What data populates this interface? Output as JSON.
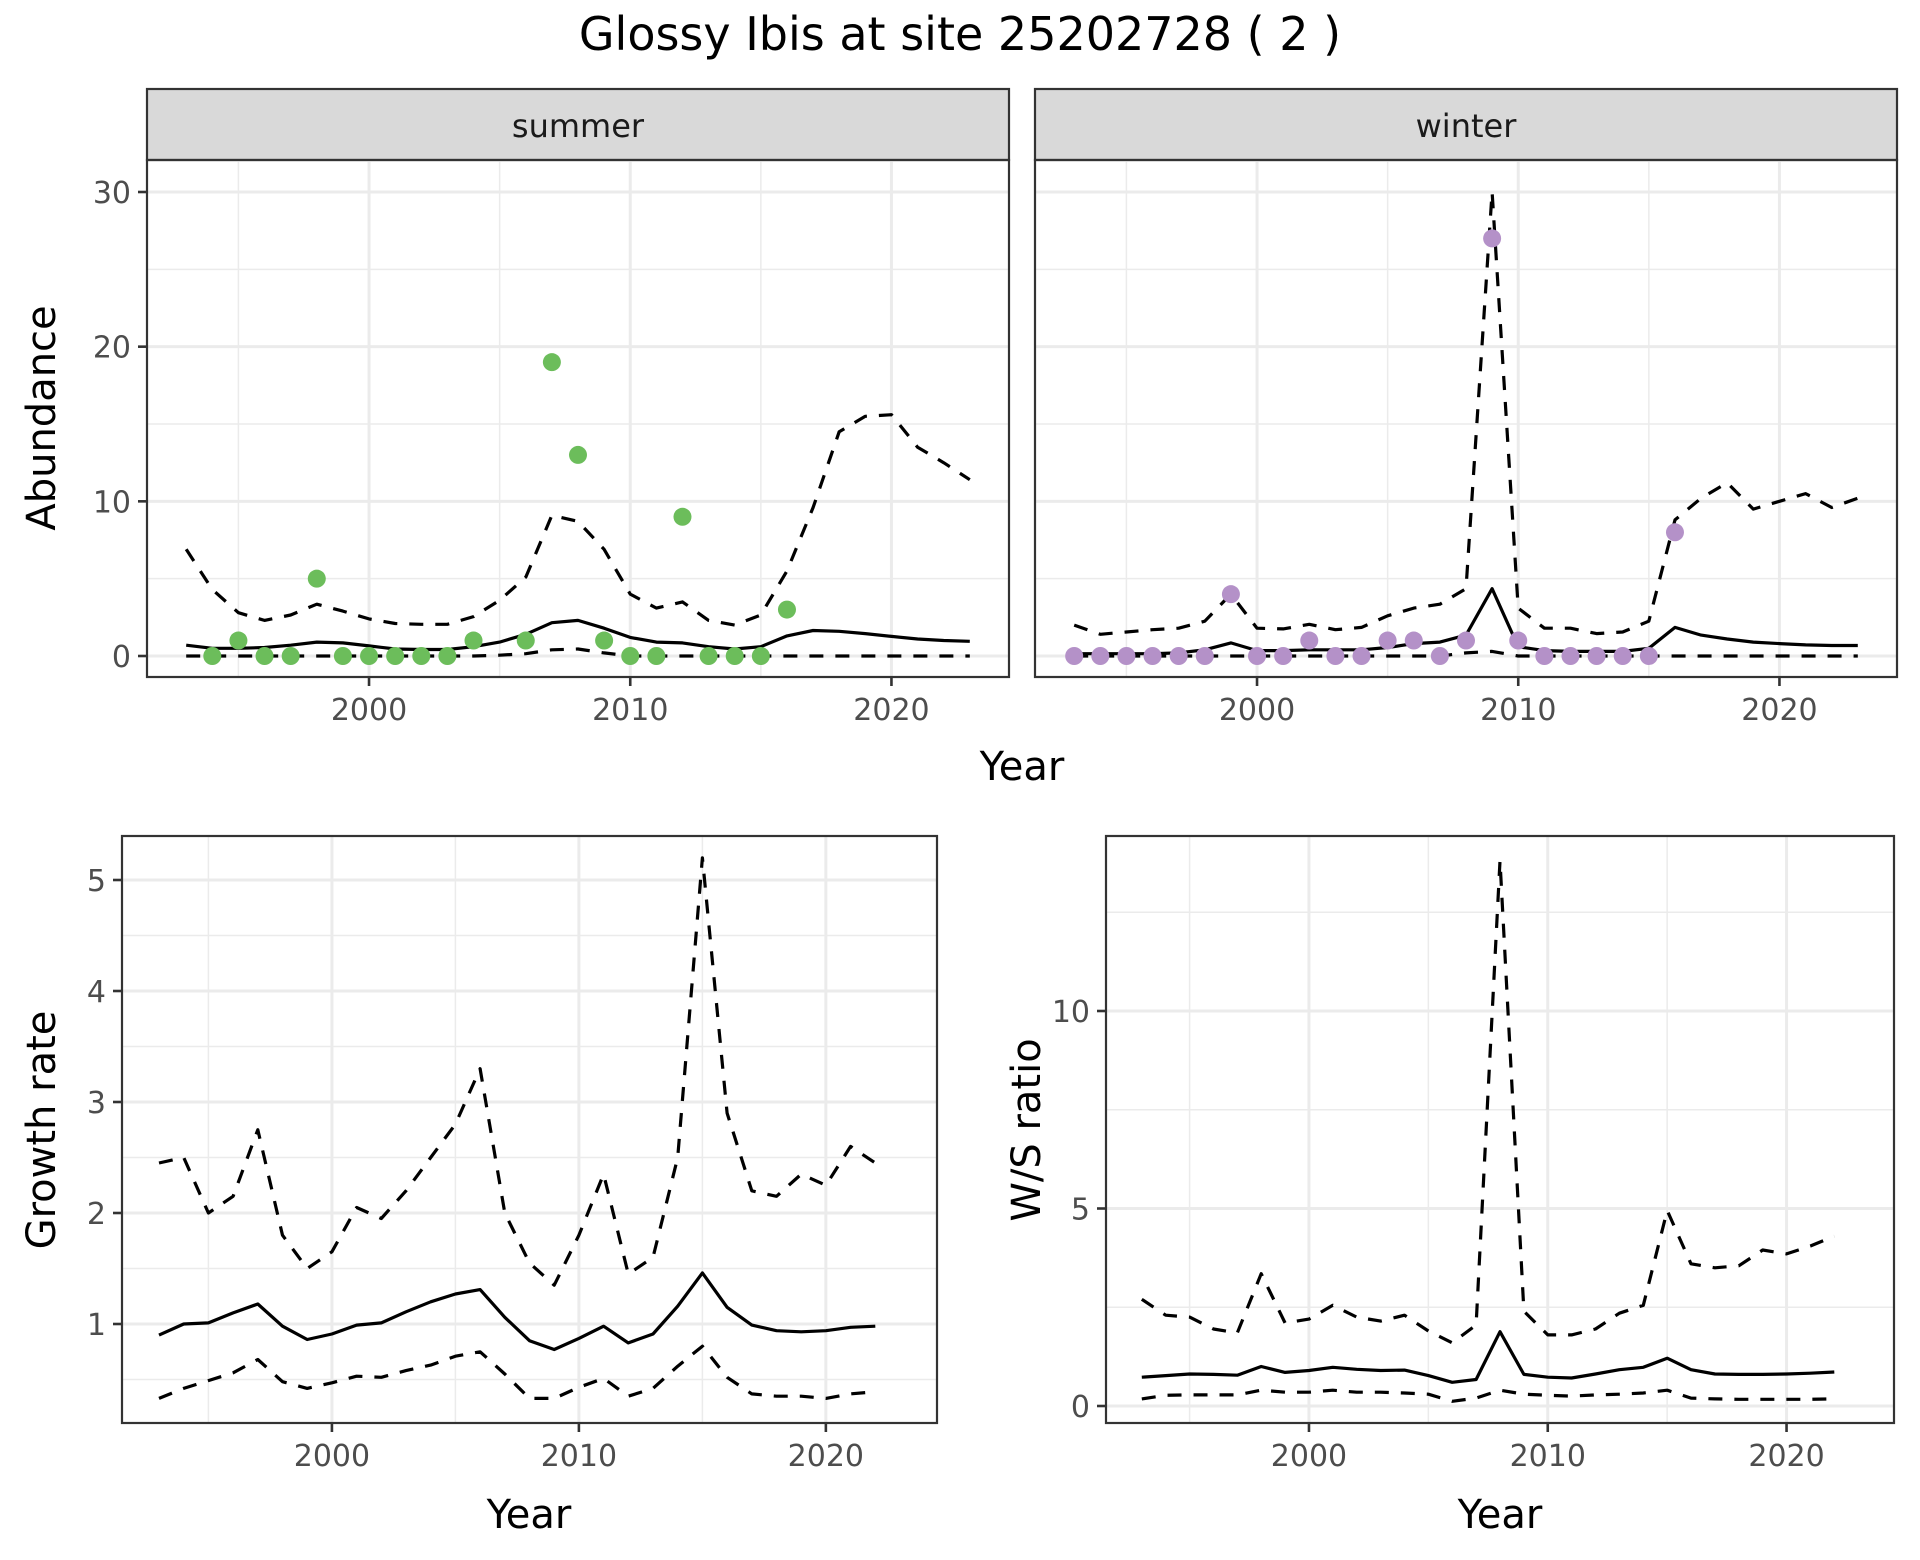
{
  "title": "Glossy Ibis at site 25202728 ( 2 )",
  "chart_data": [
    {
      "id": "abundance",
      "type": "line",
      "title": "Glossy Ibis at site 25202728 ( 2 )",
      "xlabel": "Year",
      "ylabel": "Abundance",
      "xlim": [
        1991.5,
        2024.5
      ],
      "ylim": [
        -1.5,
        32
      ],
      "x_ticks": [
        2000,
        2010,
        2020
      ],
      "y_ticks": [
        0,
        10,
        20,
        30
      ],
      "grid": true,
      "facets": [
        {
          "label": "summer",
          "point_color": "#6cbd5b",
          "points": {
            "x": [
              1994,
              1995,
              1996,
              1997,
              1998,
              1999,
              2000,
              2001,
              2002,
              2003,
              2004,
              2006,
              2007,
              2008,
              2009,
              2010,
              2011,
              2012,
              2013,
              2014,
              2015,
              2016
            ],
            "y": [
              0,
              1,
              0,
              0,
              5,
              0,
              0,
              0,
              0,
              0,
              1,
              1,
              19,
              13,
              1,
              0,
              0,
              9,
              0,
              0,
              0,
              3
            ]
          },
          "x": [
            1993,
            1994,
            1995,
            1996,
            1997,
            1998,
            1999,
            2000,
            2001,
            2002,
            2003,
            2004,
            2005,
            2006,
            2007,
            2008,
            2009,
            2010,
            2011,
            2012,
            2013,
            2014,
            2015,
            2016,
            2017,
            2018,
            2019,
            2020,
            2021,
            2022,
            2023
          ],
          "mean": [
            0.7,
            0.5,
            0.5,
            0.55,
            0.7,
            0.9,
            0.85,
            0.65,
            0.45,
            0.42,
            0.42,
            0.6,
            0.9,
            1.4,
            2.15,
            2.3,
            1.8,
            1.2,
            0.9,
            0.85,
            0.6,
            0.45,
            0.6,
            1.3,
            1.65,
            1.6,
            1.45,
            1.27,
            1.1,
            1.0,
            0.95
          ],
          "upper": [
            6.9,
            4.3,
            2.8,
            2.3,
            2.65,
            3.35,
            2.9,
            2.4,
            2.1,
            2.05,
            2.05,
            2.55,
            3.6,
            5.1,
            9.1,
            8.7,
            6.9,
            4.0,
            3.1,
            3.5,
            2.3,
            2.0,
            2.65,
            5.5,
            9.6,
            14.5,
            15.5,
            15.6,
            13.5,
            12.5,
            11.4
          ],
          "lower": [
            0,
            0,
            0,
            0,
            0,
            0,
            0,
            0,
            0,
            0,
            0,
            0,
            0.05,
            0.15,
            0.4,
            0.45,
            0.2,
            0,
            0,
            0,
            0,
            0,
            0,
            0,
            0,
            0,
            0,
            0,
            0,
            0,
            0
          ]
        },
        {
          "label": "winter",
          "point_color": "#b491c8",
          "points": {
            "x": [
              1993,
              1994,
              1995,
              1996,
              1997,
              1998,
              1999,
              2000,
              2001,
              2002,
              2003,
              2004,
              2005,
              2006,
              2007,
              2008,
              2009,
              2010,
              2011,
              2012,
              2013,
              2014,
              2015,
              2016
            ],
            "y": [
              0,
              0,
              0,
              0,
              0,
              0,
              4,
              0,
              0,
              1,
              0,
              0,
              1,
              1,
              0,
              1,
              27,
              1,
              0,
              0,
              0,
              0,
              0,
              8
            ]
          },
          "x": [
            1993,
            1994,
            1995,
            1996,
            1997,
            1998,
            1999,
            2000,
            2001,
            2002,
            2003,
            2004,
            2005,
            2006,
            2007,
            2008,
            2009,
            2010,
            2011,
            2012,
            2013,
            2014,
            2015,
            2016,
            2017,
            2018,
            2019,
            2020,
            2021,
            2022,
            2023
          ],
          "mean": [
            0.15,
            0.15,
            0.15,
            0.15,
            0.2,
            0.4,
            0.85,
            0.35,
            0.35,
            0.4,
            0.4,
            0.4,
            0.55,
            0.8,
            0.9,
            1.35,
            4.35,
            0.6,
            0.35,
            0.3,
            0.3,
            0.3,
            0.5,
            1.85,
            1.35,
            1.1,
            0.9,
            0.8,
            0.72,
            0.68,
            0.68
          ],
          "upper": [
            2.0,
            1.4,
            1.55,
            1.7,
            1.8,
            2.25,
            4.0,
            1.8,
            1.75,
            2.05,
            1.7,
            1.85,
            2.6,
            3.1,
            3.35,
            4.35,
            30.0,
            3.1,
            1.8,
            1.8,
            1.45,
            1.55,
            2.25,
            8.8,
            10.2,
            11.2,
            9.5,
            10.0,
            10.5,
            9.6,
            10.2
          ],
          "lower": [
            0,
            0,
            0,
            0,
            0,
            0,
            0,
            0,
            0,
            0,
            0,
            0,
            0,
            0,
            0,
            0.2,
            0.3,
            0,
            0,
            0,
            0,
            0,
            0,
            0,
            0,
            0,
            0,
            0,
            0,
            0,
            0
          ]
        }
      ]
    },
    {
      "id": "growth",
      "type": "line",
      "xlabel": "Year",
      "ylabel": "Growth rate",
      "xlim": [
        1991.5,
        2024.5
      ],
      "ylim": [
        0.1,
        5.4
      ],
      "x_ticks": [
        2000,
        2010,
        2020
      ],
      "y_ticks": [
        1,
        2,
        3,
        4,
        5
      ],
      "grid": true,
      "x": [
        1993,
        1994,
        1995,
        1996,
        1997,
        1998,
        1999,
        2000,
        2001,
        2002,
        2003,
        2004,
        2005,
        2006,
        2007,
        2008,
        2009,
        2010,
        2011,
        2012,
        2013,
        2014,
        2015,
        2016,
        2017,
        2018,
        2019,
        2020,
        2021,
        2022
      ],
      "series": [
        {
          "name": "mean",
          "values": [
            0.9,
            1.0,
            1.01,
            1.1,
            1.18,
            0.98,
            0.86,
            0.91,
            0.99,
            1.01,
            1.11,
            1.2,
            1.27,
            1.31,
            1.06,
            0.85,
            0.77,
            0.87,
            0.98,
            0.83,
            0.91,
            1.16,
            1.46,
            1.15,
            0.99,
            0.94,
            0.93,
            0.94,
            0.97,
            0.98
          ]
        },
        {
          "name": "upper",
          "values": [
            2.45,
            2.5,
            2.0,
            2.15,
            2.75,
            1.8,
            1.5,
            1.65,
            2.05,
            1.95,
            2.2,
            2.5,
            2.8,
            3.3,
            2.0,
            1.55,
            1.35,
            1.8,
            2.35,
            1.45,
            1.6,
            2.5,
            5.2,
            2.9,
            2.2,
            2.15,
            2.35,
            2.25,
            2.6,
            2.45
          ]
        },
        {
          "name": "lower",
          "values": [
            0.33,
            0.42,
            0.49,
            0.56,
            0.68,
            0.48,
            0.42,
            0.47,
            0.53,
            0.52,
            0.58,
            0.63,
            0.71,
            0.75,
            0.55,
            0.33,
            0.33,
            0.43,
            0.51,
            0.35,
            0.42,
            0.62,
            0.8,
            0.52,
            0.37,
            0.35,
            0.35,
            0.33,
            0.37,
            0.39
          ]
        }
      ]
    },
    {
      "id": "ratio",
      "type": "line",
      "xlabel": "Year",
      "ylabel": "W/S ratio",
      "xlim": [
        1991.5,
        2024.5
      ],
      "ylim": [
        -0.5,
        14.5
      ],
      "x_ticks": [
        2000,
        2010,
        2020
      ],
      "y_ticks": [
        0,
        5,
        10
      ],
      "grid": true,
      "x": [
        1993,
        1994,
        1995,
        1996,
        1997,
        1998,
        1999,
        2000,
        2001,
        2002,
        2003,
        2004,
        2005,
        2006,
        2007,
        2008,
        2009,
        2010,
        2011,
        2012,
        2013,
        2014,
        2015,
        2016,
        2017,
        2018,
        2019,
        2020,
        2021,
        2022
      ],
      "series": [
        {
          "name": "mean",
          "values": [
            0.73,
            0.77,
            0.81,
            0.8,
            0.78,
            1.0,
            0.85,
            0.9,
            0.98,
            0.93,
            0.9,
            0.91,
            0.77,
            0.6,
            0.67,
            1.88,
            0.8,
            0.73,
            0.71,
            0.81,
            0.92,
            0.98,
            1.21,
            0.92,
            0.81,
            0.8,
            0.8,
            0.81,
            0.83,
            0.86
          ]
        },
        {
          "name": "upper",
          "values": [
            2.7,
            2.3,
            2.25,
            1.95,
            1.85,
            3.35,
            2.1,
            2.2,
            2.55,
            2.25,
            2.15,
            2.3,
            1.9,
            1.6,
            2.05,
            13.8,
            2.4,
            1.8,
            1.8,
            1.95,
            2.35,
            2.55,
            4.95,
            3.6,
            3.5,
            3.55,
            3.95,
            3.85,
            4.05,
            4.3
          ]
        },
        {
          "name": "lower",
          "values": [
            0.18,
            0.27,
            0.28,
            0.28,
            0.28,
            0.4,
            0.35,
            0.35,
            0.4,
            0.35,
            0.35,
            0.33,
            0.3,
            0.12,
            0.2,
            0.4,
            0.3,
            0.27,
            0.25,
            0.28,
            0.3,
            0.33,
            0.4,
            0.2,
            0.18,
            0.17,
            0.17,
            0.17,
            0.17,
            0.18
          ]
        }
      ]
    }
  ]
}
